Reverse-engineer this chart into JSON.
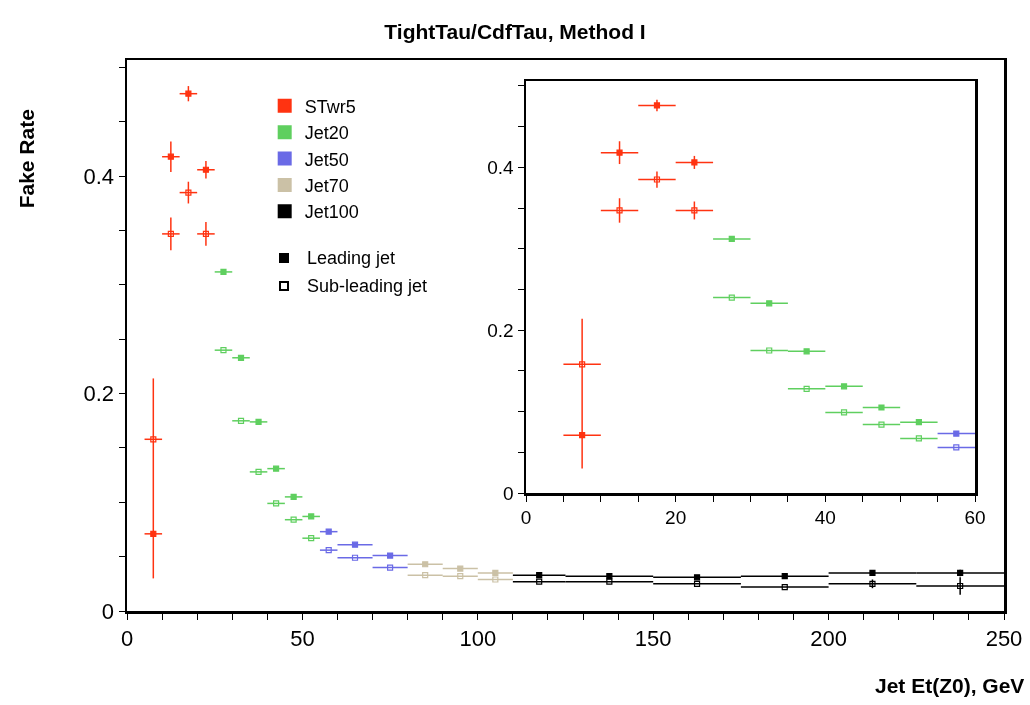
{
  "chart_data": [
    {
      "type": "scatter",
      "title": "TightTau/CdfTau, Method I",
      "xlabel": "Jet Et(Z0), GeV",
      "ylabel": "Fake Rate",
      "xlim": [
        0,
        250
      ],
      "ylim": [
        0,
        0.507
      ],
      "xticks": [
        0,
        {
          "value": 10,
          "label": null
        },
        {
          "value": 20,
          "label": null
        },
        {
          "value": 30,
          "label": null
        },
        {
          "value": 40,
          "label": null
        },
        50,
        {
          "value": 60,
          "label": null
        },
        {
          "value": 70,
          "label": null
        },
        {
          "value": 80,
          "label": null
        },
        {
          "value": 90,
          "label": null
        },
        100,
        {
          "value": 110,
          "label": null
        },
        {
          "value": 120,
          "label": null
        },
        {
          "value": 130,
          "label": null
        },
        {
          "value": 140,
          "label": null
        },
        150,
        {
          "value": 160,
          "label": null
        },
        {
          "value": 170,
          "label": null
        },
        {
          "value": 180,
          "label": null
        },
        {
          "value": 190,
          "label": null
        },
        200,
        {
          "value": 210,
          "label": null
        },
        {
          "value": 220,
          "label": null
        },
        {
          "value": 230,
          "label": null
        },
        {
          "value": 240,
          "label": null
        },
        250
      ],
      "yticks": [
        0,
        {
          "value": 0.05,
          "label": null
        },
        {
          "value": 0.1,
          "label": null
        },
        {
          "value": 0.15,
          "label": null
        },
        0.2,
        {
          "value": 0.25,
          "label": null
        },
        {
          "value": 0.3,
          "label": null
        },
        {
          "value": 0.35,
          "label": null
        },
        0.4,
        {
          "value": 0.45,
          "label": null
        },
        {
          "value": 0.5,
          "label": null
        }
      ],
      "grid": false,
      "legend": "top left",
      "annotations": [
        "Leading jet",
        "Sub-leading jet"
      ],
      "series": [
        {
          "name": "STwr5",
          "color": "#ff3311",
          "marker": "square",
          "x": [
            7.5,
            12.5,
            17.5,
            22.5
          ],
          "values": [
            0.071,
            0.418,
            0.476,
            0.406
          ],
          "errors": [
            [
              0.03,
              0.158
            ],
            0.014,
            0.007,
            0.008
          ],
          "xerrors": [
            2.5,
            2.5,
            2.5,
            2.5
          ]
        },
        {
          "color": "#ff3311",
          "marker": "square-open",
          "x": [
            7.5,
            12.5,
            17.5,
            22.5
          ],
          "values": [
            0.158,
            0.347,
            0.385,
            0.347
          ],
          "errors": [
            [
              0.158,
              0.214
            ],
            0.015,
            0.01,
            0.011
          ],
          "xerrors": [
            2.5,
            2.5,
            2.5,
            2.5
          ]
        },
        {
          "name": "Jet20",
          "color": "#5fcf5f",
          "marker": "square",
          "x": [
            27.5,
            32.5,
            37.5,
            42.5,
            47.5,
            52.5
          ],
          "values": [
            0.312,
            0.233,
            0.174,
            0.131,
            0.105,
            0.087
          ],
          "xerrors": [
            2.5,
            2.5,
            2.5,
            2.5,
            2.5,
            2.5
          ]
        },
        {
          "color": "#5fcf5f",
          "marker": "square-open",
          "x": [
            27.5,
            32.5,
            37.5,
            42.5,
            47.5,
            52.5
          ],
          "values": [
            0.24,
            0.175,
            0.128,
            0.099,
            0.084,
            0.067
          ],
          "xerrors": [
            2.5,
            2.5,
            2.5,
            2.5,
            2.5,
            2.5
          ]
        },
        {
          "name": "Jet50",
          "color": "#6a6ae6",
          "marker": "square",
          "x": [
            57.5,
            65,
            75
          ],
          "values": [
            0.073,
            0.061,
            0.051
          ],
          "xerrors": [
            2.5,
            5,
            5
          ]
        },
        {
          "color": "#6a6ae6",
          "marker": "square-open",
          "x": [
            57.5,
            65,
            75
          ],
          "values": [
            0.056,
            0.049,
            0.04
          ],
          "xerrors": [
            2.5,
            5,
            5
          ]
        },
        {
          "name": "Jet70",
          "color": "#cbc1a6",
          "marker": "square",
          "x": [
            85,
            95,
            105
          ],
          "values": [
            0.043,
            0.039,
            0.035
          ],
          "xerrors": [
            5,
            5,
            5
          ]
        },
        {
          "color": "#cbc1a6",
          "marker": "square-open",
          "x": [
            85,
            95,
            105
          ],
          "values": [
            0.033,
            0.032,
            0.029
          ],
          "xerrors": [
            5,
            5,
            5
          ]
        },
        {
          "name": "Jet100",
          "color": "#000000",
          "marker": "square",
          "x": [
            117.5,
            137.5,
            162.5,
            187.5,
            212.5,
            237.5
          ],
          "values": [
            0.033,
            0.032,
            0.031,
            0.032,
            0.035,
            0.035
          ],
          "errors": [
            null,
            null,
            null,
            null,
            null,
            0.003
          ],
          "xerrors": [
            7.5,
            12.5,
            12.5,
            12.5,
            12.5,
            12.5
          ]
        },
        {
          "color": "#000000",
          "marker": "square-open",
          "x": [
            117.5,
            137.5,
            162.5,
            187.5,
            212.5,
            237.5
          ],
          "values": [
            0.027,
            0.027,
            0.025,
            0.022,
            0.025,
            0.023
          ],
          "errors": [
            null,
            null,
            null,
            null,
            0.004,
            0.008
          ],
          "xerrors": [
            7.5,
            12.5,
            12.5,
            12.5,
            12.5,
            12.5
          ]
        }
      ]
    },
    {
      "type": "scatter",
      "xlim": [
        0,
        60
      ],
      "ylim": [
        0,
        0.506
      ],
      "xticks": [
        0,
        {
          "value": 5,
          "label": null
        },
        {
          "value": 10,
          "label": null
        },
        {
          "value": 15,
          "label": null
        },
        20,
        {
          "value": 25,
          "label": null
        },
        {
          "value": 30,
          "label": null
        },
        {
          "value": 35,
          "label": null
        },
        40,
        {
          "value": 45,
          "label": null
        },
        {
          "value": 50,
          "label": null
        },
        {
          "value": 55,
          "label": null
        },
        60
      ],
      "yticks": [
        0,
        {
          "value": 0.05,
          "label": null
        },
        {
          "value": 0.1,
          "label": null
        },
        {
          "value": 0.15,
          "label": null
        },
        0.2,
        {
          "value": 0.25,
          "label": null
        },
        {
          "value": 0.3,
          "label": null
        },
        {
          "value": 0.35,
          "label": null
        },
        0.4,
        {
          "value": 0.45,
          "label": null
        },
        {
          "value": 0.5,
          "label": null
        }
      ],
      "grid": false,
      "series": [
        {
          "color": "#ff3311",
          "marker": "square",
          "x": [
            7.5,
            12.5,
            17.5,
            22.5
          ],
          "values": [
            0.071,
            0.418,
            0.476,
            0.406
          ],
          "errors": [
            [
              0.03,
              0.158
            ],
            0.014,
            0.007,
            0.008
          ],
          "xerrors": [
            2.5,
            2.5,
            2.5,
            2.5
          ]
        },
        {
          "color": "#ff3311",
          "marker": "square-open",
          "x": [
            7.5,
            12.5,
            17.5,
            22.5
          ],
          "values": [
            0.158,
            0.347,
            0.385,
            0.347
          ],
          "errors": [
            [
              0.158,
              0.214
            ],
            0.015,
            0.01,
            0.011
          ],
          "xerrors": [
            2.5,
            2.5,
            2.5,
            2.5
          ]
        },
        {
          "color": "#5fcf5f",
          "marker": "square",
          "x": [
            27.5,
            32.5,
            37.5,
            42.5,
            47.5,
            52.5
          ],
          "values": [
            0.312,
            0.233,
            0.174,
            0.131,
            0.105,
            0.087
          ],
          "xerrors": [
            2.5,
            2.5,
            2.5,
            2.5,
            2.5,
            2.5
          ]
        },
        {
          "color": "#5fcf5f",
          "marker": "square-open",
          "x": [
            27.5,
            32.5,
            37.5,
            42.5,
            47.5,
            52.5
          ],
          "values": [
            0.24,
            0.175,
            0.128,
            0.099,
            0.084,
            0.067
          ],
          "xerrors": [
            2.5,
            2.5,
            2.5,
            2.5,
            2.5,
            2.5
          ]
        },
        {
          "color": "#6a6ae6",
          "marker": "square",
          "x": [
            57.5
          ],
          "values": [
            0.073
          ],
          "xerrors": [
            2.5
          ]
        },
        {
          "color": "#6a6ae6",
          "marker": "square-open",
          "x": [
            57.5
          ],
          "values": [
            0.056
          ],
          "xerrors": [
            2.5
          ]
        }
      ]
    }
  ]
}
